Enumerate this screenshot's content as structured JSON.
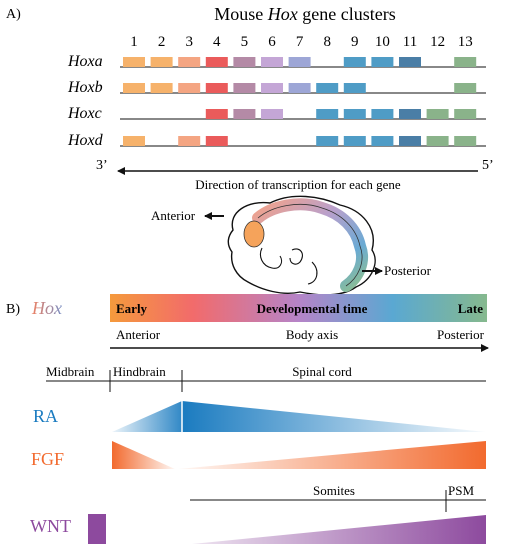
{
  "panel_a": {
    "label": "A)",
    "title_pre": "Mouse ",
    "title_italic": "Hox",
    "title_post": " gene clusters",
    "gene_numbers": [
      "1",
      "2",
      "3",
      "4",
      "5",
      "6",
      "7",
      "8",
      "9",
      "10",
      "11",
      "12",
      "13"
    ],
    "paralog_colors": [
      "#f6b26b",
      "#f6b26b",
      "#f4a582",
      "#ea5b5b",
      "#b48aa6",
      "#c4a6d6",
      "#9da6d6",
      "#4f9cc6",
      "#4f9cc6",
      "#4f9cc6",
      "#4a7ea6",
      "#8ab38a",
      "#8ab38a"
    ],
    "clusters": [
      {
        "name": "Hoxa",
        "genes": [
          1,
          2,
          3,
          4,
          5,
          6,
          7,
          9,
          10,
          11,
          13
        ]
      },
      {
        "name": "Hoxb",
        "genes": [
          1,
          2,
          3,
          4,
          5,
          6,
          7,
          8,
          9,
          13
        ]
      },
      {
        "name": "Hoxc",
        "genes": [
          4,
          5,
          6,
          8,
          9,
          10,
          11,
          12,
          13
        ]
      },
      {
        "name": "Hoxd",
        "genes": [
          1,
          3,
          4,
          8,
          9,
          10,
          11,
          12,
          13
        ]
      }
    ],
    "end_left": "3’",
    "end_right": "5’",
    "arrow_caption": "Direction of transcription for each gene",
    "anterior_label": "Anterior",
    "posterior_label": "Posterior"
  },
  "panel_b": {
    "label": "B)",
    "hox_label": "Hox",
    "time_bar": {
      "early": "Early",
      "middle": "Developmental time",
      "late": "Late"
    },
    "body_axis": {
      "anterior": "Anterior",
      "middle": "Body axis",
      "posterior": "Posterior"
    },
    "regions": {
      "midbrain": "Midbrain",
      "hindbrain": "Hindbrain",
      "spinal_cord": "Spinal cord"
    },
    "signals": {
      "ra": "RA",
      "fgf": "FGF",
      "wnt": "WNT"
    },
    "somites": {
      "somites": "Somites",
      "psm": "PSM"
    }
  },
  "colors": {
    "ra": "#1a7bc0",
    "fgf": "#f26a2e",
    "wnt": "#8d4a9e",
    "hox_label_start": "#f08060",
    "hox_label_end": "#7a8fc4"
  }
}
